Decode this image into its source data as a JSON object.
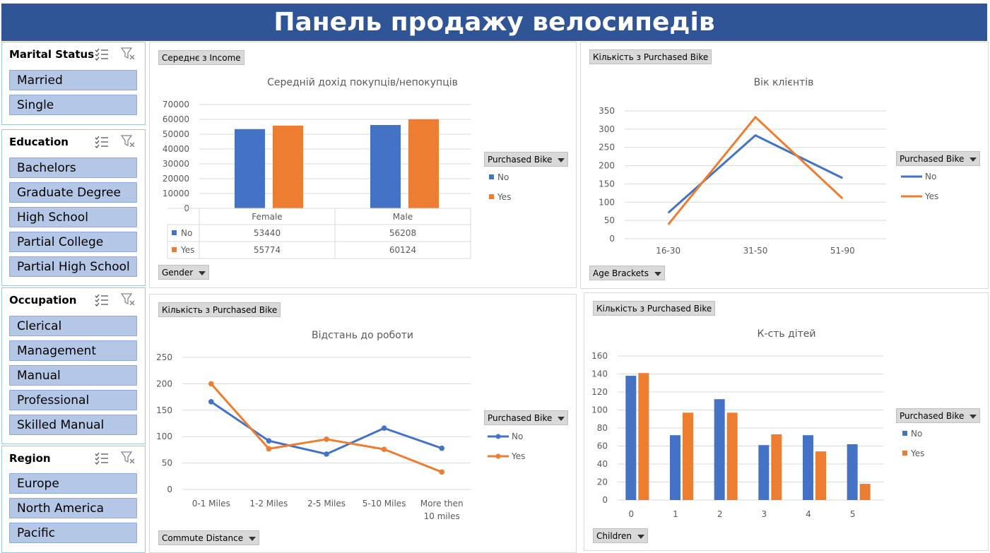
{
  "title": "Панель продажу велосипедів",
  "colors": {
    "no": "#4472c4",
    "yes": "#ed7d31",
    "header": "#2f5597",
    "slicer_item": "#b4c7e7"
  },
  "slicers": [
    {
      "label": "Marital Status",
      "items": [
        "Married",
        "Single"
      ]
    },
    {
      "label": "Education",
      "items": [
        "Bachelors",
        "Graduate Degree",
        "High School",
        "Partial College",
        "Partial High School"
      ]
    },
    {
      "label": "Occupation",
      "items": [
        "Clerical",
        "Management",
        "Manual",
        "Professional",
        "Skilled Manual"
      ]
    },
    {
      "label": "Region",
      "items": [
        "Europe",
        "North America",
        "Pacific"
      ]
    }
  ],
  "legend_filter_label": "Purchased Bike",
  "chart_data": [
    {
      "type": "bar",
      "title": "Середній дохід покупців/непокупців",
      "value_field": "Середнє з Income",
      "axis_field": "Gender",
      "categories": [
        "Female",
        "Male"
      ],
      "series": [
        {
          "name": "No",
          "values": [
            53440,
            56208
          ]
        },
        {
          "name": "Yes",
          "values": [
            55774,
            60124
          ]
        }
      ],
      "ylim": [
        0,
        70000
      ],
      "yticks": [
        "0",
        "10000",
        "20000",
        "30000",
        "40000",
        "50000",
        "60000",
        "70000"
      ],
      "data_table": true,
      "grid": true
    },
    {
      "type": "line",
      "title": "Вік клієнтів",
      "value_field": "Кількість з Purchased Bike",
      "axis_field": "Age Brackets",
      "categories": [
        "16-30",
        "31-50",
        "51-90"
      ],
      "series": [
        {
          "name": "No",
          "values": [
            71,
            283,
            166
          ]
        },
        {
          "name": "Yes",
          "values": [
            39,
            333,
            110
          ]
        }
      ],
      "ylim": [
        0,
        350
      ],
      "yticks": [
        "0",
        "50",
        "100",
        "150",
        "200",
        "250",
        "300",
        "350"
      ],
      "legend": "right",
      "grid": true
    },
    {
      "type": "line",
      "title": "Відстань до роботи",
      "value_field": "Кількість з Purchased Bike",
      "axis_field": "Commute Distance",
      "categories": [
        "0-1 Miles",
        "1-2 Miles",
        "2-5 Miles",
        "5-10 Miles",
        "More then 10 miles"
      ],
      "category_lines": [
        [
          "0-1 Miles"
        ],
        [
          "1-2 Miles"
        ],
        [
          "2-5 Miles"
        ],
        [
          "5-10 Miles"
        ],
        [
          "More then",
          "10 miles"
        ]
      ],
      "series": [
        {
          "name": "No",
          "values": [
            166,
            92,
            67,
            116,
            78
          ]
        },
        {
          "name": "Yes",
          "values": [
            200,
            77,
            95,
            76,
            33
          ]
        }
      ],
      "ylim": [
        0,
        250
      ],
      "yticks": [
        "0",
        "50",
        "100",
        "150",
        "200",
        "250"
      ],
      "markers": true,
      "legend": "right",
      "grid": true
    },
    {
      "type": "bar",
      "title": "К-сть дітей",
      "value_field": "Кількість з Purchased Bike",
      "axis_field": "Children",
      "categories": [
        "0",
        "1",
        "2",
        "3",
        "4",
        "5"
      ],
      "series": [
        {
          "name": "No",
          "values": [
            138,
            72,
            112,
            61,
            72,
            62
          ]
        },
        {
          "name": "Yes",
          "values": [
            141,
            97,
            97,
            73,
            54,
            18
          ]
        }
      ],
      "ylim": [
        0,
        160
      ],
      "yticks": [
        "0",
        "20",
        "40",
        "60",
        "80",
        "100",
        "120",
        "140",
        "160"
      ],
      "legend": "right",
      "grid": true
    }
  ]
}
